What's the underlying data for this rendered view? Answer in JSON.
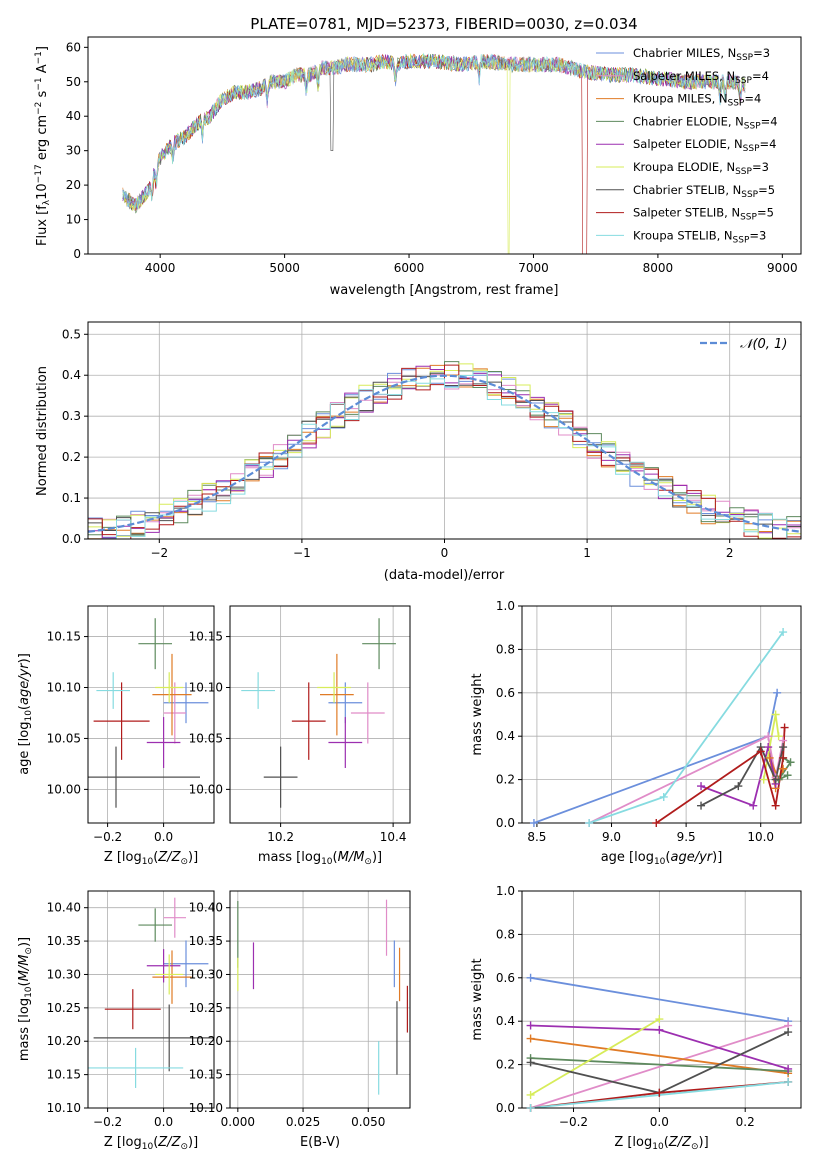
{
  "title": "PLATE=0781, MJD=52373, FIBERID=0030, z=0.034",
  "colors": {
    "chabrier_miles": "#6b8fdc",
    "salpeter_miles": "#e08cc8",
    "kroupa_miles": "#e07b26",
    "chabrier_elodie": "#5e8a5e",
    "salpeter_elodie": "#9c2fb0",
    "kroupa_elodie": "#d7ec5a",
    "chabrier_stelib": "#505050",
    "salpeter_stelib": "#b01c1c",
    "kroupa_stelib": "#86dbe0",
    "normal": "#5c8cd6"
  },
  "chart_data": [
    {
      "id": "spectrum",
      "type": "line",
      "xlabel": "wavelength [Angstrom, rest frame]",
      "ylabel": "Flux [fλ10⁻¹⁷ erg cm⁻² s⁻¹ A⁻¹]",
      "xlim": [
        3420,
        9150
      ],
      "ylim": [
        0,
        63
      ],
      "xticks": [
        "4000",
        "5000",
        "6000",
        "7000",
        "8000",
        "9000"
      ],
      "yticks": [
        "0",
        "10",
        "20",
        "30",
        "40",
        "50",
        "60"
      ],
      "grid": false,
      "legend": "top-right",
      "spectrum_envelope": {
        "x": [
          3700,
          3800,
          3900,
          4000,
          4100,
          4200,
          4300,
          4400,
          4500,
          4600,
          4700,
          4800,
          4900,
          5000,
          5100,
          5200,
          5300,
          5400,
          5500,
          5600,
          5700,
          5800,
          5900,
          6000,
          6200,
          6400,
          6600,
          6800,
          7000,
          7200,
          7400,
          7600,
          7800,
          8000,
          8200,
          8400,
          8600,
          8700
        ],
        "y": [
          17,
          14,
          18,
          28,
          32,
          34,
          38,
          40,
          45,
          47,
          47,
          48,
          50,
          50,
          52,
          52,
          54,
          54,
          55,
          55,
          55,
          56,
          55,
          56,
          56,
          55,
          56,
          55,
          55,
          55,
          53,
          52,
          52,
          51,
          50,
          50,
          50,
          49
        ]
      },
      "series": [
        {
          "name": "Chabrier MILES, N_SSP=3"
        },
        {
          "name": "Salpeter MILES, N_SSP=4"
        },
        {
          "name": "Kroupa MILES, N_SSP=4"
        },
        {
          "name": "Chabrier ELODIE, N_SSP=4"
        },
        {
          "name": "Salpeter ELODIE, N_SSP=4"
        },
        {
          "name": "Kroupa ELODIE, N_SSP=3"
        },
        {
          "name": "Chabrier STELIB, N_SSP=5"
        },
        {
          "name": "Salpeter STELIB, N_SSP=5"
        },
        {
          "name": "Kroupa STELIB, N_SSP=3"
        }
      ]
    },
    {
      "id": "residuals",
      "type": "histogram",
      "xlabel": "(data-model)/error",
      "ylabel": "Normed distribution",
      "xlim": [
        -2.5,
        2.5
      ],
      "ylim": [
        0,
        0.53
      ],
      "xticks": [
        "−2",
        "−1",
        "0",
        "1",
        "2"
      ],
      "yticks": [
        "0.0",
        "0.1",
        "0.2",
        "0.3",
        "0.4",
        "0.5"
      ],
      "grid": true,
      "legend": "top-right",
      "legend_label": "𝒩(0, 1)",
      "bin_width": 0.1
    },
    {
      "id": "age_vs_Z",
      "type": "errorbar",
      "xlabel": "Z [log₁₀(Z/Z⊙)]",
      "ylabel": "age  [log₁₀(age/yr)]",
      "xlim": [
        -0.27,
        0.18
      ],
      "ylim": [
        9.967,
        10.18
      ],
      "xticks": [
        "−0.2",
        "0.0"
      ],
      "yticks": [
        "10.00",
        "10.05",
        "10.10",
        "10.15"
      ],
      "points": [
        {
          "x": 0.08,
          "xerr": 0.08,
          "y": 10.085,
          "yerr": 0.02
        },
        {
          "x": 0.04,
          "xerr": 0.04,
          "y": 10.075,
          "yerr": 0.03
        },
        {
          "x": 0.03,
          "xerr": 0.07,
          "y": 10.093,
          "yerr": 0.04
        },
        {
          "x": -0.03,
          "xerr": 0.06,
          "y": 10.143,
          "yerr": 0.025
        },
        {
          "x": 0.0,
          "xerr": 0.06,
          "y": 10.046,
          "yerr": 0.025
        },
        {
          "x": 0.02,
          "xerr": 0.05,
          "y": 10.1,
          "yerr": 0.015
        },
        {
          "x": -0.17,
          "xerr": 0.3,
          "y": 10.012,
          "yerr": 0.03
        },
        {
          "x": -0.15,
          "xerr": 0.1,
          "y": 10.067,
          "yerr": 0.038
        },
        {
          "x": -0.18,
          "xerr": 0.06,
          "y": 10.097,
          "yerr": 0.018
        }
      ]
    },
    {
      "id": "age_vs_mass",
      "type": "errorbar",
      "xlabel": "mass [log₁₀(M/M⊙)]",
      "ylabel": "",
      "xlim": [
        10.11,
        10.43
      ],
      "ylim": [
        9.967,
        10.18
      ],
      "xticks": [
        "10.2",
        "10.4"
      ],
      "yticks": [
        "10.00",
        "10.05",
        "10.10",
        "10.15"
      ],
      "points": [
        {
          "x": 10.315,
          "xerr": 0.03,
          "y": 10.085,
          "yerr": 0.02
        },
        {
          "x": 10.355,
          "xerr": 0.03,
          "y": 10.075,
          "yerr": 0.03
        },
        {
          "x": 10.3,
          "xerr": 0.03,
          "y": 10.093,
          "yerr": 0.04
        },
        {
          "x": 10.375,
          "xerr": 0.03,
          "y": 10.143,
          "yerr": 0.025
        },
        {
          "x": 10.315,
          "xerr": 0.03,
          "y": 10.046,
          "yerr": 0.025
        },
        {
          "x": 10.295,
          "xerr": 0.03,
          "y": 10.1,
          "yerr": 0.015
        },
        {
          "x": 10.2,
          "xerr": 0.03,
          "y": 10.012,
          "yerr": 0.03
        },
        {
          "x": 10.25,
          "xerr": 0.03,
          "y": 10.067,
          "yerr": 0.038
        },
        {
          "x": 10.16,
          "xerr": 0.03,
          "y": 10.097,
          "yerr": 0.018
        }
      ]
    },
    {
      "id": "mass_weight_vs_age",
      "type": "line",
      "xlabel": "age  [log₁₀(age/yr)]",
      "ylabel": "mass weight",
      "xlim": [
        8.4,
        10.27
      ],
      "ylim": [
        0,
        1
      ],
      "xticks": [
        "8.5",
        "9.0",
        "9.5",
        "10.0"
      ],
      "yticks": [
        "0.0",
        "0.2",
        "0.4",
        "0.6",
        "0.8",
        "1.0"
      ],
      "grid": true,
      "series": [
        {
          "x": [
            8.48,
            10.05,
            10.11
          ],
          "y": [
            0.0,
            0.4,
            0.6
          ]
        },
        {
          "x": [
            8.85,
            10.05,
            10.1,
            10.15
          ],
          "y": [
            0.0,
            0.4,
            0.21,
            0.38
          ]
        },
        {
          "x": [
            10.1,
            10.06,
            10.12,
            10.15
          ],
          "y": [
            0.16,
            0.3,
            0.2,
            0.25
          ]
        },
        {
          "x": [
            10.15,
            10.2,
            10.12,
            10.18
          ],
          "y": [
            0.3,
            0.28,
            0.2,
            0.22
          ]
        },
        {
          "x": [
            9.6,
            9.95,
            10.05,
            10.1
          ],
          "y": [
            0.17,
            0.08,
            0.35,
            0.18
          ]
        },
        {
          "x": [
            10.02,
            10.1,
            10.12
          ],
          "y": [
            0.2,
            0.5,
            0.4
          ]
        },
        {
          "x": [
            9.6,
            9.85,
            10.0,
            10.1,
            10.15
          ],
          "y": [
            0.08,
            0.17,
            0.35,
            0.2,
            0.35
          ]
        },
        {
          "x": [
            9.3,
            10.0,
            10.1,
            10.15,
            10.16
          ],
          "y": [
            0.0,
            0.33,
            0.08,
            0.3,
            0.44
          ]
        },
        {
          "x": [
            8.85,
            9.35,
            10.15
          ],
          "y": [
            0.0,
            0.12,
            0.88
          ]
        }
      ]
    },
    {
      "id": "mass_vs_Z",
      "type": "errorbar",
      "xlabel": "Z [log₁₀(Z/Z⊙)]",
      "ylabel": "mass [log₁₀(M/M⊙)]",
      "xlim": [
        -0.27,
        0.18
      ],
      "ylim": [
        10.1,
        10.425
      ],
      "xticks": [
        "−0.2",
        "0.0"
      ],
      "yticks": [
        "10.10",
        "10.15",
        "10.20",
        "10.25",
        "10.30",
        "10.35",
        "10.40"
      ],
      "points": [
        {
          "x": 0.08,
          "xerr": 0.08,
          "y": 10.316,
          "yerr": 0.035
        },
        {
          "x": 0.04,
          "xerr": 0.04,
          "y": 10.385,
          "yerr": 0.03
        },
        {
          "x": 0.03,
          "xerr": 0.07,
          "y": 10.296,
          "yerr": 0.04
        },
        {
          "x": -0.03,
          "xerr": 0.06,
          "y": 10.374,
          "yerr": 0.025
        },
        {
          "x": 0.0,
          "xerr": 0.06,
          "y": 10.313,
          "yerr": 0.025
        },
        {
          "x": 0.02,
          "xerr": 0.05,
          "y": 10.3,
          "yerr": 0.03
        },
        {
          "x": 0.02,
          "xerr": 0.27,
          "y": 10.205,
          "yerr": 0.05
        },
        {
          "x": -0.11,
          "xerr": 0.1,
          "y": 10.248,
          "yerr": 0.03
        },
        {
          "x": -0.1,
          "xerr": 0.17,
          "y": 10.16,
          "yerr": 0.03
        }
      ]
    },
    {
      "id": "mass_vs_ebv",
      "type": "errorbar",
      "xlabel": "E(B-V)",
      "ylabel": "",
      "xlim": [
        -0.003,
        0.066
      ],
      "ylim": [
        10.1,
        10.425
      ],
      "xticks": [
        "0.000",
        "0.025",
        "0.050"
      ],
      "yticks": [
        "10.10",
        "10.15",
        "10.20",
        "10.25",
        "10.30",
        "10.35",
        "10.40"
      ],
      "points": [
        {
          "x": 0.06,
          "xerr": 0.0,
          "y": 10.316,
          "yerr": 0.035
        },
        {
          "x": 0.057,
          "xerr": 0.0,
          "y": 10.37,
          "yerr": 0.042
        },
        {
          "x": 0.062,
          "xerr": 0.0,
          "y": 10.3,
          "yerr": 0.04
        },
        {
          "x": 0.0,
          "xerr": 0.0,
          "y": 10.36,
          "yerr": 0.05
        },
        {
          "x": 0.006,
          "xerr": 0.0,
          "y": 10.313,
          "yerr": 0.035
        },
        {
          "x": 0.0,
          "xerr": 0.0,
          "y": 10.3,
          "yerr": 0.025
        },
        {
          "x": 0.061,
          "xerr": 0.0,
          "y": 10.205,
          "yerr": 0.055
        },
        {
          "x": 0.065,
          "xerr": 0.0,
          "y": 10.248,
          "yerr": 0.035
        },
        {
          "x": 0.054,
          "xerr": 0.0,
          "y": 10.16,
          "yerr": 0.04
        }
      ]
    },
    {
      "id": "mass_weight_vs_Z",
      "type": "line",
      "xlabel": "Z [log₁₀(Z/Z⊙)]",
      "ylabel": "mass weight",
      "xlim": [
        -0.32,
        0.33
      ],
      "ylim": [
        0,
        1
      ],
      "xticks": [
        "−0.2",
        "0.0",
        "0.2"
      ],
      "yticks": [
        "0.0",
        "0.2",
        "0.4",
        "0.6",
        "0.8",
        "1.0"
      ],
      "grid": true,
      "series": [
        {
          "x": [
            -0.3,
            0.3
          ],
          "y": [
            0.6,
            0.4
          ]
        },
        {
          "x": [
            -0.3,
            0.3
          ],
          "y": [
            0.0,
            0.38
          ]
        },
        {
          "x": [
            -0.3,
            0.3
          ],
          "y": [
            0.32,
            0.16
          ]
        },
        {
          "x": [
            -0.3,
            0.3
          ],
          "y": [
            0.23,
            0.17
          ]
        },
        {
          "x": [
            -0.3,
            0.0,
            0.3
          ],
          "y": [
            0.38,
            0.36,
            0.18
          ]
        },
        {
          "x": [
            -0.3,
            0.0
          ],
          "y": [
            0.06,
            0.41
          ]
        },
        {
          "x": [
            -0.3,
            0.0,
            0.3
          ],
          "y": [
            0.21,
            0.07,
            0.35
          ]
        },
        {
          "x": [
            -0.3,
            0.0,
            0.3
          ],
          "y": [
            0.0,
            0.07,
            0.12
          ]
        },
        {
          "x": [
            -0.3,
            0.3
          ],
          "y": [
            0.0,
            0.12
          ]
        }
      ]
    }
  ]
}
